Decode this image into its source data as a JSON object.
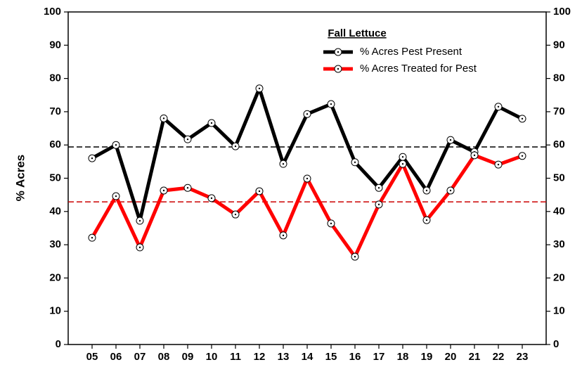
{
  "chart_data": {
    "type": "line",
    "legend_title": "Fall Lettuce",
    "y_label": "% Acres",
    "categories": [
      "05",
      "06",
      "07",
      "08",
      "09",
      "10",
      "11",
      "12",
      "13",
      "14",
      "15",
      "16",
      "17",
      "18",
      "19",
      "20",
      "21",
      "22",
      "23"
    ],
    "series": [
      {
        "name": "% Acres Pest Present",
        "color": "#000000",
        "values": [
          56,
          60,
          37.2,
          68,
          61.7,
          66.6,
          59.6,
          77,
          54.3,
          69.3,
          72.3,
          54.8,
          47.1,
          56.4,
          46.3,
          61.5,
          57.9,
          71.5,
          67.9
        ]
      },
      {
        "name": "% Acres Treated for Pest",
        "color": "#ff0000",
        "values": [
          32.1,
          44.6,
          29.2,
          46.3,
          47.1,
          44,
          39.1,
          46.1,
          32.8,
          49.9,
          36.4,
          26.4,
          42.1,
          54.3,
          37.4,
          46.3,
          56.9,
          54.1,
          56.7
        ]
      }
    ],
    "reference_lines": [
      {
        "value": 59.4,
        "color": "#000000"
      },
      {
        "value": 42.9,
        "color": "#cc0000"
      }
    ],
    "ylim": [
      0,
      100
    ],
    "yticks": [
      0,
      10,
      20,
      30,
      40,
      50,
      60,
      70,
      80,
      90,
      100
    ],
    "y2lim": [
      0,
      100
    ],
    "y2ticks": [
      0,
      10,
      20,
      30,
      40,
      50,
      60,
      70,
      80,
      90,
      100
    ]
  }
}
